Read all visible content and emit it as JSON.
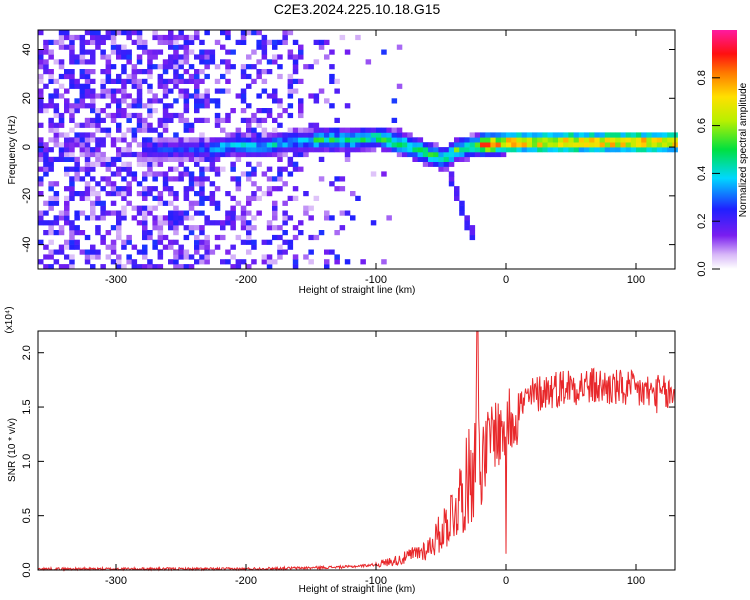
{
  "title": "C2E3.2024.225.10.18.G15",
  "colors": {
    "snr_line": "#e8282b",
    "background": "#ffffff",
    "axes": "#000000"
  },
  "chart_data": [
    {
      "type": "heatmap",
      "xlabel": "Height of straight line (km)",
      "ylabel": "Frequency (Hz)",
      "xlim": [
        -360,
        130
      ],
      "ylim": [
        -50,
        48
      ],
      "xticks": [
        "-300",
        "-200",
        "-100",
        "0",
        "100"
      ],
      "yticks": [
        "-40",
        "-20",
        "0",
        "20",
        "40"
      ],
      "colorbar": {
        "label": "Normalized spectral amplitude",
        "ticks": [
          "0.0",
          "0.2",
          "0.4",
          "0.6",
          "0.8"
        ],
        "range": [
          0,
          1
        ],
        "colormap": "rainbow (white-violet-blue-cyan-green-yellow-red-magenta)"
      },
      "ridge_x": [
        -275,
        -260,
        -230,
        -210,
        -190,
        -170,
        -150,
        -120,
        -100,
        -80,
        -60,
        -50,
        -45,
        -40,
        -20,
        0,
        50,
        130
      ],
      "ridge_y": [
        -2,
        -2,
        -2,
        0,
        -1,
        1,
        2,
        2,
        3,
        0,
        -4,
        -6,
        -4,
        -2,
        0,
        1,
        1,
        1
      ],
      "branch_x": [
        -45,
        -40,
        -35,
        -27
      ],
      "branch_y": [
        -12,
        -20,
        -28,
        -37
      ]
    },
    {
      "type": "line",
      "xlabel": "Height of straight line (km)",
      "ylabel": "SNR (10 * v/v)",
      "multiplier": "(x10⁴)",
      "xlim": [
        -360,
        130
      ],
      "ylim": [
        0,
        2.2
      ],
      "xticks": [
        "-300",
        "-200",
        "-100",
        "0",
        "100"
      ],
      "yticks": [
        "0.0",
        "0.5",
        "1.0",
        "1.5",
        "2.0"
      ],
      "series": [
        {
          "x": [
            -360,
            -300,
            -250,
            -200,
            -150,
            -120,
            -100,
            -80,
            -60,
            -50,
            -40,
            -30,
            -25,
            -22,
            -20,
            -15,
            -10,
            -5,
            0,
            10,
            20,
            30,
            50,
            80,
            100,
            130
          ],
          "y": [
            0.01,
            0.01,
            0.01,
            0.01,
            0.02,
            0.03,
            0.05,
            0.1,
            0.2,
            0.35,
            0.55,
            0.8,
            1.0,
            2.2,
            0.9,
            1.1,
            1.3,
            1.25,
            1.35,
            1.5,
            1.6,
            1.65,
            1.7,
            1.68,
            1.65,
            1.6
          ]
        }
      ]
    }
  ]
}
